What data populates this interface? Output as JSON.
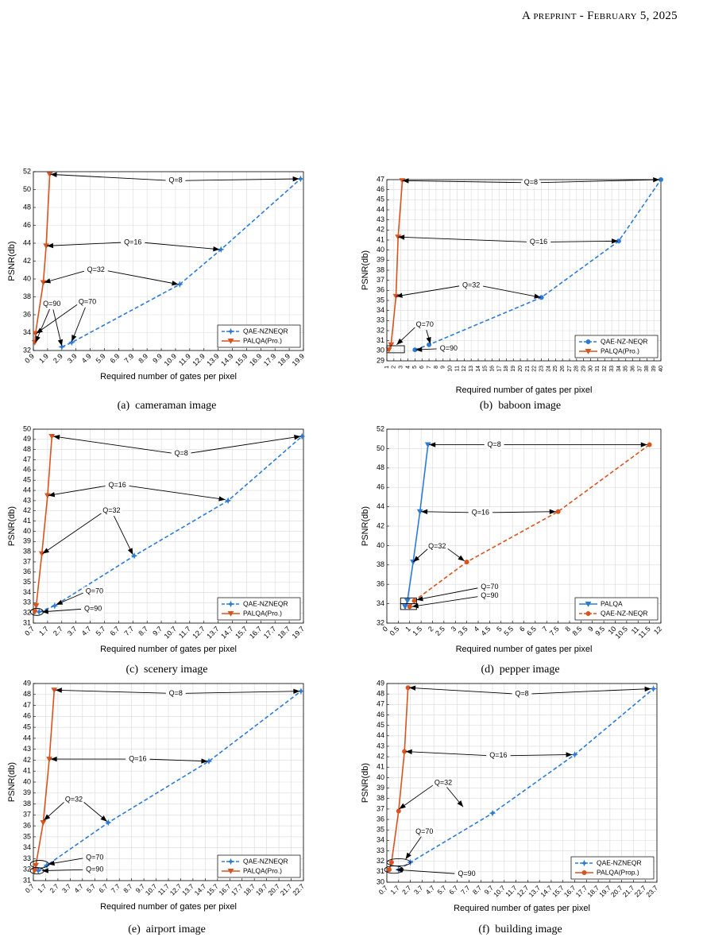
{
  "header": {
    "prefix": "A",
    "smallcaps": "preprint - February 5, 2025"
  },
  "colors": {
    "qae": "#2b7bd6",
    "palqa": "#d9531e",
    "grid": "#d9d9d9"
  },
  "chart_data": [
    {
      "id": "a",
      "type": "line",
      "caption": "(a)  cameraman image",
      "xlabel": "Required number of gates per pixel",
      "ylabel": "PSNR(db)",
      "xlim": [
        0.9,
        19.9
      ],
      "ylim": [
        32,
        52
      ],
      "xticks_step": 1,
      "yticks_step": 2,
      "xtick_labels": [
        "0.9",
        "1.9",
        "2.9",
        "3.9",
        "4.9",
        "5.9",
        "6.9",
        "7.9",
        "8.9",
        "9.9",
        "10.9",
        "11.9",
        "12.9",
        "13.9",
        "14.9",
        "15.9",
        "16.9",
        "17.9",
        "18.9",
        "19.9"
      ],
      "ytick_labels": [
        "32",
        "34",
        "36",
        "38",
        "40",
        "42",
        "44",
        "46",
        "48",
        "50",
        "52"
      ],
      "legend": "bottom-right",
      "series": [
        {
          "name": "QAE-NZNEQR",
          "style": "dashed",
          "color": "#2b7bd6",
          "marker": "*",
          "x": [
            2.9,
            3.6,
            11.2,
            14.1,
            19.7
          ],
          "y": [
            32.4,
            32.9,
            39.4,
            43.3,
            51.2
          ]
        },
        {
          "name": "PALQA(Pro.)",
          "style": "solid",
          "color": "#d9531e",
          "marker": "v",
          "x": [
            1.0,
            1.05,
            1.6,
            1.8,
            2.05
          ],
          "y": [
            32.9,
            33.9,
            39.6,
            43.7,
            51.7
          ]
        }
      ],
      "annotations": [
        {
          "text": "Q=8",
          "tx": 10.9,
          "ty": 51.0,
          "targets": [
            [
              2.1,
              51.7
            ],
            [
              19.6,
              51.2
            ]
          ]
        },
        {
          "text": "Q=16",
          "tx": 7.9,
          "ty": 44.1,
          "targets": [
            [
              1.85,
              43.7
            ],
            [
              14.0,
              43.3
            ]
          ]
        },
        {
          "text": "Q=32",
          "tx": 5.3,
          "ty": 41.0,
          "targets": [
            [
              1.65,
              39.6
            ],
            [
              11.1,
              39.4
            ]
          ]
        },
        {
          "text": "Q=90",
          "tx": 2.2,
          "ty": 37.2,
          "targets": [
            [
              1.05,
              32.9
            ],
            [
              2.9,
              32.5
            ]
          ]
        },
        {
          "text": "Q=70",
          "tx": 4.7,
          "ty": 37.4,
          "targets": [
            [
              1.1,
              33.9
            ],
            [
              3.6,
              33.0
            ]
          ]
        }
      ]
    },
    {
      "id": "b",
      "type": "line",
      "caption": "(b)  baboon image",
      "xlabel": "Required number of gates per pixel",
      "ylabel": "PSNR(db)",
      "xlim": [
        1,
        40
      ],
      "ylim": [
        29,
        47
      ],
      "xticks_step": 1,
      "yticks_step": 1,
      "xtick_labels": [
        "1",
        "2",
        "3",
        "4",
        "5",
        "6",
        "7",
        "8",
        "9",
        "10",
        "11",
        "12",
        "13",
        "14",
        "15",
        "16",
        "17",
        "18",
        "19",
        "20",
        "21",
        "22",
        "23",
        "24",
        "25",
        "26",
        "27",
        "28",
        "29",
        "30",
        "31",
        "32",
        "33",
        "34",
        "35",
        "36",
        "37",
        "38",
        "39",
        "40"
      ],
      "ytick_labels": [
        "29",
        "30",
        "31",
        "32",
        "33",
        "34",
        "35",
        "36",
        "37",
        "38",
        "39",
        "40",
        "41",
        "42",
        "43",
        "44",
        "45",
        "46",
        "47"
      ],
      "legend": "bottom-right",
      "series": [
        {
          "name": "QAE-NZ-NEQR",
          "style": "dashed",
          "color": "#2b7bd6",
          "marker": "o",
          "x": [
            5,
            7,
            23,
            34,
            40
          ],
          "y": [
            30.1,
            30.6,
            35.3,
            40.9,
            47.0
          ]
        },
        {
          "name": "PALQA(Pro.)",
          "style": "solid",
          "color": "#d9531e",
          "marker": "v",
          "x": [
            1.3,
            1.6,
            2.3,
            2.6,
            3.2
          ],
          "y": [
            30.1,
            30.6,
            35.4,
            41.3,
            46.9
          ]
        }
      ],
      "annotations": [
        {
          "text": "Q=8",
          "tx": 21.5,
          "ty": 46.7,
          "targets": [
            [
              3.2,
              46.9
            ],
            [
              39.8,
              47.0
            ]
          ]
        },
        {
          "text": "Q=16",
          "tx": 22.6,
          "ty": 40.8,
          "targets": [
            [
              2.6,
              41.3
            ],
            [
              33.9,
              40.9
            ]
          ]
        },
        {
          "text": "Q=32",
          "tx": 13.0,
          "ty": 36.5,
          "targets": [
            [
              2.3,
              35.4
            ],
            [
              22.9,
              35.3
            ]
          ]
        },
        {
          "text": "Q=70",
          "tx": 6.4,
          "ty": 32.6,
          "targets": [
            [
              2.4,
              30.6
            ],
            [
              7.2,
              30.7
            ]
          ]
        },
        {
          "text": "Q=90",
          "tx": 9.8,
          "ty": 30.2,
          "targets": [
            [
              5.1,
              30.1
            ]
          ]
        }
      ],
      "boxes": [
        [
          1,
          29.8,
          3.5,
          30.5
        ]
      ]
    },
    {
      "id": "c",
      "type": "line",
      "caption": "(c)  scenery image",
      "xlabel": "Required number of gates per pixel",
      "ylabel": "PSNR(db)",
      "xlim": [
        0.7,
        19.7
      ],
      "ylim": [
        31,
        50
      ],
      "xticks_step": 1,
      "yticks_step": 1,
      "xtick_labels": [
        "0.7",
        "1.7",
        "2.7",
        "3.7",
        "4.7",
        "5.7",
        "6.7",
        "7.7",
        "8.7",
        "9.7",
        "10.7",
        "11.7",
        "12.7",
        "13.7",
        "14.7",
        "15.7",
        "16.7",
        "17.7",
        "18.7",
        "19.7"
      ],
      "ytick_labels": [
        "31",
        "32",
        "33",
        "34",
        "35",
        "36",
        "37",
        "38",
        "39",
        "40",
        "41",
        "42",
        "43",
        "44",
        "45",
        "46",
        "47",
        "48",
        "49",
        "50"
      ],
      "legend": "bottom-right",
      "series": [
        {
          "name": "QAE-NZNEQR",
          "style": "dashed",
          "color": "#2b7bd6",
          "marker": "*",
          "x": [
            1.1,
            2.2,
            7.8,
            14.4,
            19.6
          ],
          "y": [
            32.1,
            32.7,
            37.6,
            43.0,
            49.3
          ]
        },
        {
          "name": "PALQA(Pro.)",
          "style": "solid",
          "color": "#d9531e",
          "marker": "v",
          "x": [
            0.8,
            0.9,
            1.3,
            1.7,
            2.0
          ],
          "y": [
            32.1,
            32.7,
            37.8,
            43.5,
            49.3
          ]
        }
      ],
      "annotations": [
        {
          "text": "Q=8",
          "tx": 11.1,
          "ty": 47.6,
          "targets": [
            [
              2.1,
              49.3
            ],
            [
              19.5,
              49.3
            ]
          ]
        },
        {
          "text": "Q=16",
          "tx": 6.6,
          "ty": 44.5,
          "targets": [
            [
              1.75,
              43.5
            ],
            [
              14.2,
              43.1
            ]
          ]
        },
        {
          "text": "Q=32",
          "tx": 6.2,
          "ty": 42.0,
          "targets": [
            [
              1.35,
              37.8
            ],
            [
              7.7,
              37.7
            ]
          ]
        },
        {
          "text": "Q=70",
          "tx": 5.0,
          "ty": 34.1,
          "targets": [
            [
              2.3,
              32.8
            ]
          ]
        },
        {
          "text": "Q=90",
          "tx": 4.9,
          "ty": 32.4,
          "targets": [
            [
              1.3,
              32.1
            ]
          ]
        }
      ],
      "ellipses": [
        [
          0.95,
          32.1,
          0.45,
          0.35
        ]
      ]
    },
    {
      "id": "d",
      "type": "line",
      "caption": "(d)  pepper image",
      "xlabel": "Required number of gates per pixel",
      "ylabel": "PSNR(db)",
      "xlim": [
        0,
        12
      ],
      "ylim": [
        32,
        52
      ],
      "xticks_step": 0.5,
      "yticks_step": 2,
      "xtick_labels": [
        "0",
        "0.5",
        "1",
        "1.5",
        "2",
        "2.5",
        "3",
        "3.5",
        "4",
        "4.5",
        "5",
        "5.5",
        "6",
        "6.5",
        "7",
        "7.5",
        "8",
        "8.5",
        "9",
        "9.5",
        "10",
        "10.5",
        "11",
        "11.5",
        "12"
      ],
      "ytick_labels": [
        "32",
        "34",
        "36",
        "38",
        "40",
        "42",
        "44",
        "46",
        "48",
        "50",
        "52"
      ],
      "legend": "bottom-right",
      "series": [
        {
          "name": "PALQA",
          "style": "solid",
          "color": "#2b7bd6",
          "marker": "v",
          "x": [
            0.8,
            0.9,
            1.15,
            1.45,
            1.8
          ],
          "y": [
            33.7,
            34.3,
            38.3,
            43.5,
            50.4
          ]
        },
        {
          "name": "QAE-NZ-NEQR",
          "style": "dashed",
          "color": "#d9531e",
          "marker": "o",
          "x": [
            1.0,
            1.2,
            3.5,
            7.5,
            11.5
          ],
          "y": [
            33.7,
            34.3,
            38.3,
            43.5,
            50.4
          ]
        }
      ],
      "annotations": [
        {
          "text": "Q=8",
          "tx": 4.7,
          "ty": 50.4,
          "targets": [
            [
              1.85,
              50.4
            ],
            [
              11.4,
              50.4
            ]
          ]
        },
        {
          "text": "Q=16",
          "tx": 4.1,
          "ty": 43.4,
          "targets": [
            [
              1.5,
              43.5
            ],
            [
              7.4,
              43.5
            ]
          ]
        },
        {
          "text": "Q=32",
          "tx": 2.2,
          "ty": 39.9,
          "targets": [
            [
              1.15,
              38.3
            ],
            [
              3.4,
              38.4
            ]
          ]
        },
        {
          "text": "Q=70",
          "tx": 4.5,
          "ty": 35.7,
          "targets": [
            [
              1.3,
              34.4
            ]
          ]
        },
        {
          "text": "Q=90",
          "tx": 4.5,
          "ty": 34.8,
          "targets": [
            [
              1.1,
              33.7
            ]
          ]
        }
      ],
      "boxes": [
        [
          0.6,
          34.0,
          1.3,
          34.6
        ],
        [
          0.6,
          33.4,
          1.3,
          34.0
        ]
      ]
    },
    {
      "id": "e",
      "type": "line",
      "caption": "(e)  airport image",
      "xlabel": "Required number of gates per pixel",
      "ylabel": "PSNR(db)",
      "xlim": [
        0.7,
        22.7
      ],
      "ylim": [
        31,
        49
      ],
      "xticks_step": 1,
      "yticks_step": 1,
      "xtick_labels": [
        "0.7",
        "1.7",
        "2.7",
        "3.7",
        "4.7",
        "5.7",
        "6.7",
        "7.7",
        "8.7",
        "9.7",
        "10.7",
        "11.7",
        "12.7",
        "13.7",
        "14.7",
        "15.7",
        "16.7",
        "17.7",
        "18.7",
        "19.7",
        "20.7",
        "21.7",
        "22.7"
      ],
      "ytick_labels": [
        "31",
        "32",
        "33",
        "34",
        "35",
        "36",
        "37",
        "38",
        "39",
        "40",
        "41",
        "42",
        "43",
        "44",
        "45",
        "46",
        "47",
        "48",
        "49"
      ],
      "legend": "bottom-right",
      "series": [
        {
          "name": "QAE-NZNEQR",
          "style": "dashed",
          "color": "#2b7bd6",
          "marker": "*",
          "x": [
            1.1,
            1.8,
            6.8,
            15.0,
            22.5
          ],
          "y": [
            31.9,
            32.4,
            36.3,
            41.9,
            48.3
          ]
        },
        {
          "name": "PALQA(Pro.)",
          "style": "solid",
          "color": "#d9531e",
          "marker": "v",
          "x": [
            0.8,
            0.9,
            1.5,
            2.0,
            2.4
          ],
          "y": [
            31.9,
            32.4,
            36.3,
            42.1,
            48.4
          ]
        }
      ],
      "annotations": [
        {
          "text": "Q=8",
          "tx": 12.3,
          "ty": 48.1,
          "targets": [
            [
              2.5,
              48.4
            ],
            [
              22.4,
              48.3
            ]
          ]
        },
        {
          "text": "Q=16",
          "tx": 9.2,
          "ty": 42.1,
          "targets": [
            [
              2.1,
              42.1
            ],
            [
              14.9,
              41.9
            ]
          ]
        },
        {
          "text": "Q=32",
          "tx": 4.0,
          "ty": 38.4,
          "targets": [
            [
              1.55,
              36.5
            ],
            [
              6.7,
              36.4
            ]
          ]
        },
        {
          "text": "Q=70",
          "tx": 5.7,
          "ty": 33.1,
          "targets": [
            [
              1.9,
              32.5
            ]
          ]
        },
        {
          "text": "Q=90",
          "tx": 5.7,
          "ty": 32.0,
          "targets": [
            [
              1.4,
              31.9
            ]
          ]
        }
      ],
      "ellipses": [
        [
          1.2,
          32.5,
          0.75,
          0.35
        ],
        [
          1.0,
          31.9,
          0.55,
          0.3
        ]
      ]
    },
    {
      "id": "f",
      "type": "line",
      "caption": "(f)  building image",
      "xlabel": "Required number of gates per pixel",
      "ylabel": "PSNR(db)",
      "xlim": [
        0.7,
        23.7
      ],
      "ylim": [
        30,
        49
      ],
      "xticks_step": 1,
      "yticks_step": 1,
      "xtick_labels": [
        "0.7",
        "1.7",
        "2.7",
        "3.7",
        "4.7",
        "5.7",
        "6.7",
        "7.7",
        "8.7",
        "9.7",
        "10.7",
        "11.7",
        "12.7",
        "13.7",
        "14.7",
        "15.7",
        "16.7",
        "17.7",
        "18.7",
        "19.7",
        "20.7",
        "21.7",
        "22.7",
        "23.7"
      ],
      "ytick_labels": [
        "30",
        "31",
        "32",
        "33",
        "34",
        "35",
        "36",
        "37",
        "38",
        "39",
        "40",
        "41",
        "42",
        "43",
        "44",
        "45",
        "46",
        "47",
        "48",
        "49"
      ],
      "legend": "bottom-right",
      "series": [
        {
          "name": "QAE-NZNEQR",
          "style": "dashed",
          "color": "#2b7bd6",
          "marker": "*",
          "x": [
            1.7,
            2.7,
            9.7,
            16.7,
            23.4
          ],
          "y": [
            31.2,
            31.9,
            36.6,
            42.2,
            48.5
          ]
        },
        {
          "name": "PALQA(Prop.)",
          "style": "solid",
          "color": "#d9531e",
          "marker": "o",
          "x": [
            0.9,
            1.1,
            1.7,
            2.2,
            2.5
          ],
          "y": [
            31.2,
            31.9,
            36.8,
            42.5,
            48.6
          ]
        }
      ],
      "annotations": [
        {
          "text": "Q=8",
          "tx": 12.2,
          "ty": 48.0,
          "targets": [
            [
              2.6,
              48.6
            ],
            [
              23.2,
              48.5
            ]
          ]
        },
        {
          "text": "Q=16",
          "tx": 10.2,
          "ty": 42.1,
          "targets": [
            [
              2.3,
              42.5
            ],
            [
              16.5,
              42.2
            ]
          ]
        },
        {
          "text": "Q=32",
          "tx": 5.5,
          "ty": 39.5,
          "targets": [
            [
              1.75,
              37.0
            ],
            [
              7.2,
              37.2
            ]
          ]
        },
        {
          "text": "Q=70",
          "tx": 3.9,
          "ty": 34.8,
          "targets": [
            [
              2.3,
              32.2
            ]
          ]
        },
        {
          "text": "Q=90",
          "tx": 7.5,
          "ty": 30.8,
          "targets": [
            [
              1.5,
              31.2
            ]
          ]
        }
      ],
      "ellipses": [
        [
          1.3,
          31.2,
          0.8,
          0.35
        ],
        [
          1.7,
          31.9,
          1.0,
          0.35
        ]
      ]
    }
  ]
}
